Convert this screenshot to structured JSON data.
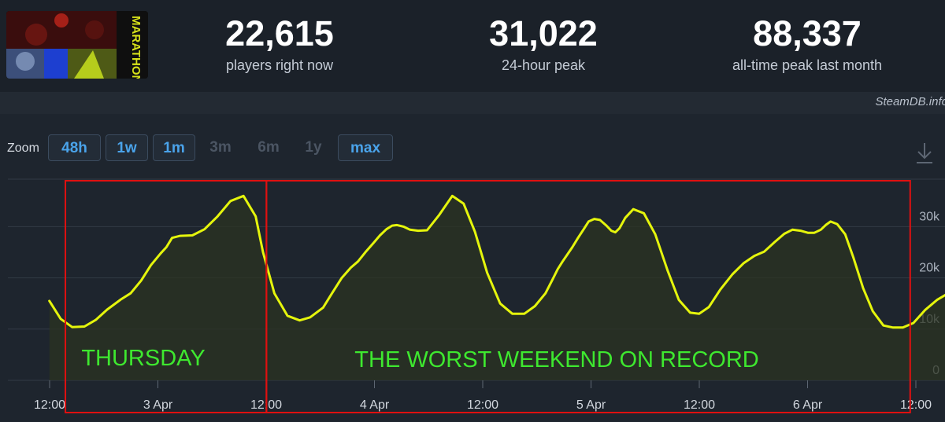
{
  "header": {
    "game_logo_text": "MARATHON",
    "stats": [
      {
        "value": "22,615",
        "label": "players right now"
      },
      {
        "value": "31,022",
        "label": "24-hour peak"
      },
      {
        "value": "88,337",
        "label": "all-time peak last month"
      }
    ],
    "credit": "SteamDB.info"
  },
  "toolbar": {
    "zoom_label": "Zoom",
    "zoom_buttons": [
      {
        "label": "48h",
        "state": "active"
      },
      {
        "label": "1w",
        "state": "active"
      },
      {
        "label": "1m",
        "state": "active"
      },
      {
        "label": "3m",
        "state": "disabled"
      },
      {
        "label": "6m",
        "state": "disabled"
      },
      {
        "label": "1y",
        "state": "disabled"
      },
      {
        "label": "max",
        "state": "active"
      }
    ],
    "download_icon": "download-icon"
  },
  "chart_data": {
    "type": "line",
    "title": "",
    "xlabel": "",
    "ylabel": "",
    "ylim": [
      0,
      38000
    ],
    "grid": true,
    "y_ticks": [
      {
        "value": 0,
        "label": "0"
      },
      {
        "value": 10000,
        "label": "10k"
      },
      {
        "value": 20000,
        "label": "20k"
      },
      {
        "value": 30000,
        "label": "30k"
      }
    ],
    "x_ticks": [
      {
        "hour": 12,
        "label": "12:00"
      },
      {
        "hour": 24,
        "label": "3 Apr"
      },
      {
        "hour": 36,
        "label": "12:00"
      },
      {
        "hour": 48,
        "label": "4 Apr"
      },
      {
        "hour": 60,
        "label": "12:00"
      },
      {
        "hour": 72,
        "label": "5 Apr"
      },
      {
        "hour": 84,
        "label": "12:00"
      },
      {
        "hour": 96,
        "label": "6 Apr"
      },
      {
        "hour": 108,
        "label": "12:00"
      }
    ],
    "x_hours": [
      11.97,
      13.23,
      14.5,
      15.86,
      17.11,
      18.37,
      19.9,
      20.98,
      22.15,
      23.23,
      24.31,
      24.94,
      25.57,
      26.47,
      27.82,
      29.17,
      30.61,
      32.05,
      33.49,
      34.84,
      35.65,
      36.91,
      38.36,
      39.71,
      40.87,
      42.31,
      43.3,
      44.38,
      45.37,
      46.18,
      47.08,
      47.89,
      48.61,
      49.33,
      49.96,
      50.5,
      51.22,
      51.94,
      52.84,
      53.83,
      55.18,
      56.62,
      57.88,
      59.14,
      60.49,
      61.93,
      63.27,
      64.62,
      65.79,
      66.96,
      67.77,
      68.31,
      68.85,
      69.39,
      69.93,
      70.56,
      71.19,
      71.73,
      72.36,
      72.99,
      73.71,
      74.25,
      74.7,
      75.16,
      75.79,
      76.69,
      77.86,
      79.12,
      80.47,
      81.73,
      82.99,
      83.98,
      85.06,
      86.32,
      87.67,
      88.93,
      90.1,
      91.18,
      92.35,
      93.42,
      94.32,
      95.22,
      96.03,
      96.75,
      97.47,
      98.01,
      98.55,
      99.27,
      100.17,
      101.07,
      102.15,
      103.23,
      104.4,
      105.48,
      106.56,
      107.73,
      109,
      110.35,
      111.79,
      113.23,
      114.76,
      116.29,
      117.64,
      118.9,
      119.71
    ],
    "series": [
      {
        "values": [
          15500,
          12000,
          10400,
          10500,
          11800,
          13800,
          15800,
          17000,
          19500,
          22500,
          24800,
          26000,
          27800,
          28200,
          28300,
          29500,
          32000,
          35000,
          36000,
          32000,
          25000,
          17000,
          12600,
          11700,
          12300,
          14200,
          17000,
          20000,
          22000,
          23200,
          25200,
          26800,
          28300,
          29500,
          30200,
          30300,
          30000,
          29400,
          29200,
          29300,
          32300,
          36000,
          34500,
          29000,
          21000,
          15000,
          13000,
          13000,
          14500,
          17000,
          19800,
          21700,
          23200,
          24600,
          26000,
          27800,
          29500,
          31000,
          31500,
          31300,
          30200,
          29200,
          28900,
          29700,
          31700,
          33400,
          32600,
          28500,
          21500,
          15700,
          13200,
          13000,
          14300,
          17700,
          20700,
          22900,
          24300,
          25100,
          27000,
          28600,
          29400,
          29200,
          28800,
          28800,
          29400,
          30300,
          31000,
          30500,
          28500,
          24000,
          18000,
          13500,
          10700,
          10300,
          10300,
          11200,
          13700,
          15700,
          17200,
          18900,
          21100,
          22500,
          22700,
          22600,
          22300
        ]
      }
    ],
    "annotations": [
      {
        "type": "box",
        "x_start_hour": 13.75,
        "x_end_hour": 36.03,
        "text": ""
      },
      {
        "type": "box",
        "x_start_hour": 36.03,
        "x_end_hour": 107.37,
        "text": ""
      },
      {
        "type": "label",
        "text": "THURSDAY"
      },
      {
        "type": "label",
        "text": "THE WORST WEEKEND ON RECORD"
      }
    ],
    "colors": {
      "line": "#e5f50c",
      "fill": "#2b3322",
      "grid": "#323b46",
      "annotation_box": "#e01010",
      "annotation_text": "#3ee82f"
    }
  }
}
